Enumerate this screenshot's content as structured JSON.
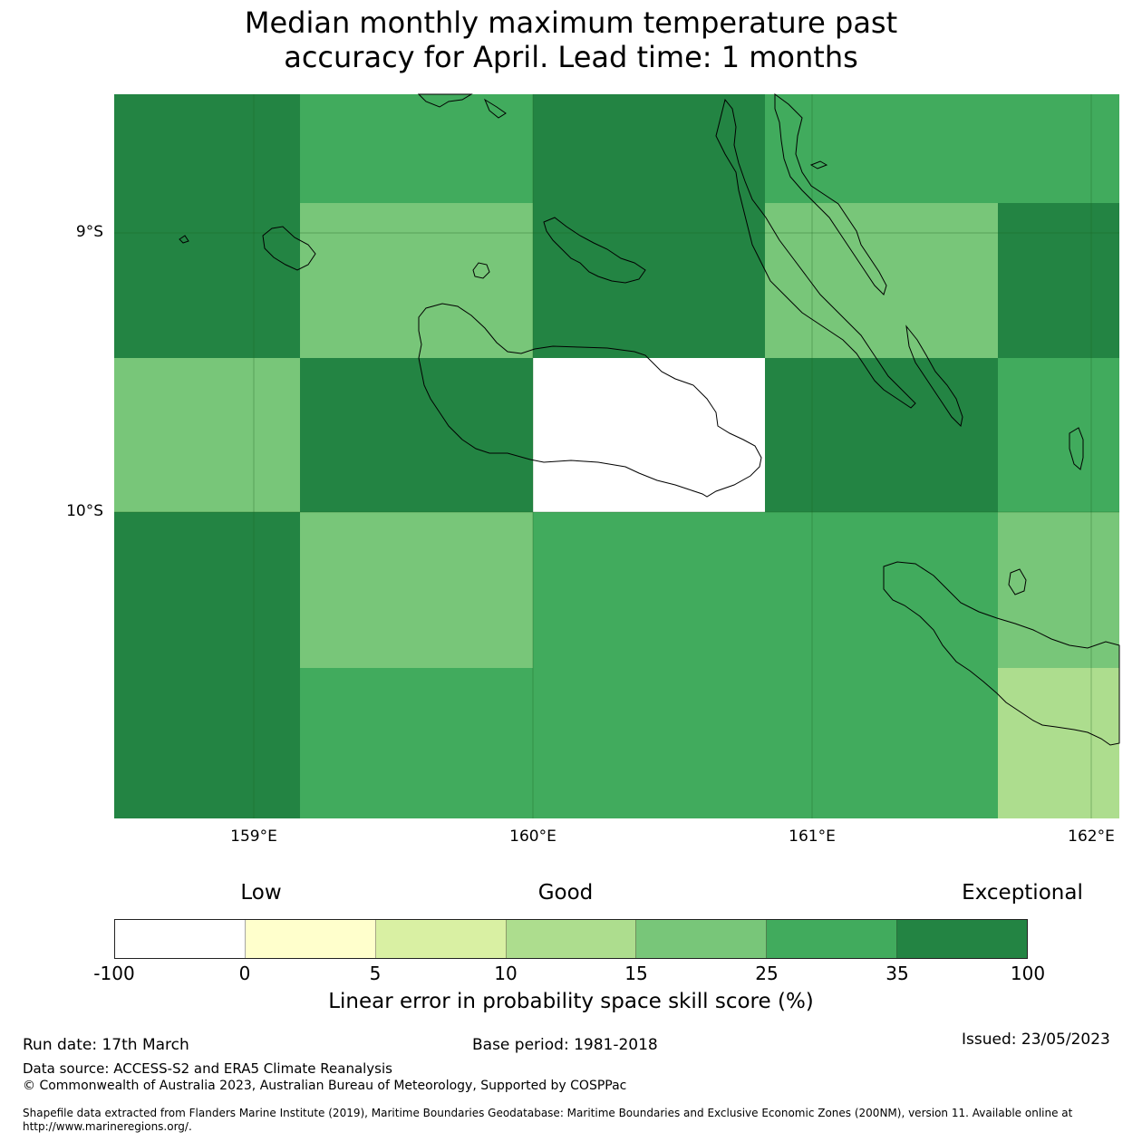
{
  "title": {
    "line1": "Median monthly maximum temperature past",
    "line2": "accuracy for April. Lead time: 1 months"
  },
  "map": {
    "lat_labels": [
      "9°S",
      "10°S"
    ],
    "lon_labels": [
      "159°E",
      "160°E",
      "161°E",
      "162°E"
    ],
    "grid_note": "Skill score categories per grid cell (0-based index into colorbar.colors)",
    "cells": [
      [
        6,
        5,
        6,
        5,
        5
      ],
      [
        6,
        4,
        6,
        4,
        6
      ],
      [
        4,
        6,
        0,
        6,
        5
      ],
      [
        6,
        4,
        5,
        5,
        4
      ],
      [
        6,
        5,
        5,
        5,
        3
      ]
    ]
  },
  "colorbar": {
    "categories": [
      "Low",
      "Good",
      "Exceptional"
    ],
    "ticks": [
      "-100",
      "0",
      "5",
      "10",
      "15",
      "25",
      "35",
      "100"
    ],
    "colors": [
      "#ffffff",
      "#ffffcc",
      "#d9f0a3",
      "#addd8e",
      "#78c679",
      "#41ab5d",
      "#238443"
    ],
    "label": "Linear error in probability space skill score (%)"
  },
  "footer": {
    "run_date": "Run date: 17th March",
    "base_period": "Base period: 1981-2018",
    "issued": "Issued: 23/05/2023",
    "data_source": "Data source: ACCESS-S2 and ERA5 Climate Reanalysis",
    "copyright": "© Commonwealth of Australia 2023, Australian Bureau of Meteorology, Supported by COSPPac",
    "shapefile": "Shapefile data extracted from Flanders Marine Institute (2019), Maritime Boundaries Geodatabase: Maritime Boundaries and Exclusive Economic Zones (200NM), version 11. Available online at http://www.marineregions.org/."
  }
}
